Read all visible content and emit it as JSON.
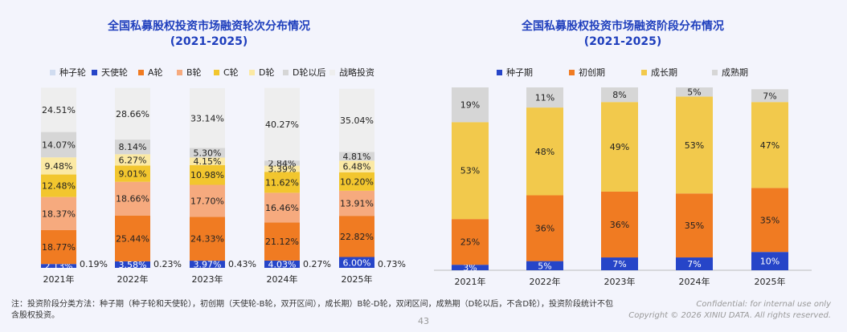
{
  "charts": [
    {
      "title_line1": "全国私募股权投资市场融资轮次分布情况",
      "title_line2": "(2021-2025)",
      "type": "stacked-bar",
      "categories": [
        "2021年",
        "2022年",
        "2023年",
        "2024年",
        "2025年"
      ],
      "legend": [
        "种子轮",
        "天使轮",
        "A轮",
        "B轮",
        "C轮",
        "D轮",
        "D轮以后",
        "战略投资"
      ],
      "colors": [
        "#d0dcf0",
        "#2645c8",
        "#f07b22",
        "#f6aa7e",
        "#f2c62e",
        "#fbe9a4",
        "#d6d6d6",
        "#eeeeee"
      ],
      "side_labels": [
        "0.19%",
        "0.23%",
        "0.43%",
        "0.27%",
        "0.73%"
      ],
      "series": [
        {
          "name": "天使轮",
          "values": [
            2.13,
            3.58,
            3.97,
            4.03,
            6.0
          ],
          "labels": [
            "2.13%",
            "3.58%",
            "3.97%",
            "4.03%",
            "6.00%"
          ]
        },
        {
          "name": "A轮",
          "values": [
            18.77,
            25.44,
            24.33,
            21.12,
            22.82
          ],
          "labels": [
            "18.77%",
            "25.44%",
            "24.33%",
            "21.12%",
            "22.82%"
          ]
        },
        {
          "name": "B轮",
          "values": [
            18.37,
            18.66,
            17.7,
            16.46,
            13.91
          ],
          "labels": [
            "18.37%",
            "18.66%",
            "17.70%",
            "16.46%",
            "13.91%"
          ]
        },
        {
          "name": "C轮",
          "values": [
            12.48,
            9.01,
            10.98,
            11.62,
            10.2
          ],
          "labels": [
            "12.48%",
            "9.01%",
            "10.98%",
            "11.62%",
            "10.20%"
          ]
        },
        {
          "name": "D轮",
          "values": [
            9.48,
            6.27,
            4.15,
            3.39,
            6.48
          ],
          "labels": [
            "9.48%",
            "6.27%",
            "4.15%",
            "3.39%",
            "6.48%"
          ]
        },
        {
          "name": "D轮以后",
          "values": [
            14.07,
            8.14,
            5.3,
            2.84,
            4.81
          ],
          "labels": [
            "14.07%",
            "8.14%",
            "5.30%",
            "2.84%",
            "4.81%"
          ]
        },
        {
          "name": "战略投资",
          "values": [
            24.51,
            28.66,
            33.14,
            40.27,
            35.04
          ],
          "labels": [
            "24.51%",
            "28.66%",
            "33.14%",
            "40.27%",
            "35.04%"
          ]
        }
      ]
    },
    {
      "title_line1": "全国私募股权投资市场融资阶段分布情况",
      "title_line2": "(2021-2025)",
      "type": "stacked-bar",
      "categories": [
        "2021年",
        "2022年",
        "2023年",
        "2024年",
        "2025年"
      ],
      "legend": [
        "种子期",
        "初创期",
        "成长期",
        "成熟期"
      ],
      "colors": [
        "#2645c8",
        "#f07b22",
        "#f2c94c",
        "#d6d6d6"
      ],
      "series": [
        {
          "name": "种子期",
          "values": [
            3,
            5,
            7,
            7,
            10
          ],
          "labels": [
            "3%",
            "5%",
            "7%",
            "7%",
            "10%"
          ]
        },
        {
          "name": "初创期",
          "values": [
            25,
            36,
            36,
            35,
            35
          ],
          "labels": [
            "25%",
            "36%",
            "36%",
            "35%",
            "35%"
          ]
        },
        {
          "name": "成长期",
          "values": [
            53,
            48,
            49,
            53,
            47
          ],
          "labels": [
            "53%",
            "48%",
            "49%",
            "53%",
            "47%"
          ]
        },
        {
          "name": "成熟期",
          "values": [
            19,
            11,
            8,
            5,
            7
          ],
          "labels": [
            "19%",
            "11%",
            "8%",
            "5%",
            "7%"
          ]
        }
      ]
    }
  ],
  "footnote_line1": "注：投资阶段分类方法：种子期（种子轮和天使轮），初创期（天使轮-B轮，双开区间），成长期）B轮-D轮，双闭区间，成熟期（D轮以后，不含D轮），投资阶段统计不包",
  "footnote_line2": "含股权投资。",
  "confidential_line1": "Confidential: for internal use only",
  "confidential_line2": "Copyright © 2026 XINIU DATA.  All rights reserved.",
  "page_number": "43"
}
